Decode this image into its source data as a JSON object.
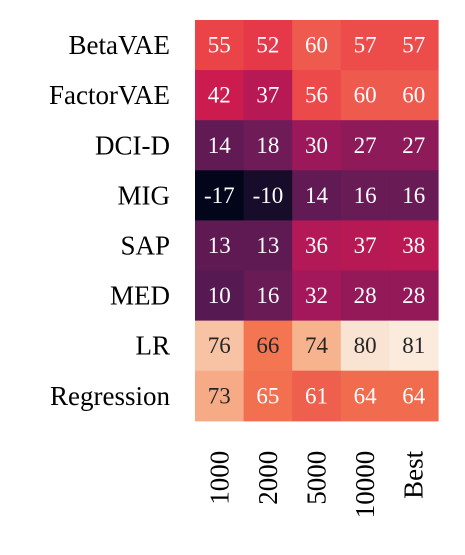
{
  "chart_data": {
    "type": "heatmap",
    "rows": [
      "BetaVAE",
      "FactorVAE",
      "DCI-D",
      "MIG",
      "SAP",
      "MED",
      "LR",
      "Regression"
    ],
    "columns": [
      "1000",
      "2000",
      "5000",
      "10000",
      "Best"
    ],
    "values": [
      [
        55,
        52,
        60,
        57,
        57
      ],
      [
        42,
        37,
        56,
        60,
        60
      ],
      [
        14,
        18,
        30,
        27,
        27
      ],
      [
        -17,
        -10,
        14,
        16,
        16
      ],
      [
        13,
        13,
        36,
        37,
        38
      ],
      [
        10,
        16,
        32,
        28,
        28
      ],
      [
        76,
        66,
        74,
        80,
        81
      ],
      [
        73,
        65,
        61,
        64,
        64
      ]
    ],
    "colormap": "rocket",
    "value_range": [
      -17,
      81
    ],
    "colorbar": false
  }
}
